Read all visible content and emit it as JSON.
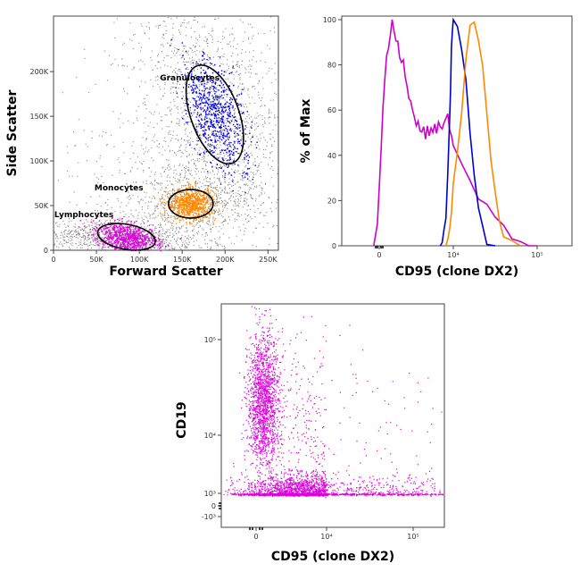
{
  "chart_data": [
    {
      "type": "scatter",
      "xlabel": "Forward Scatter",
      "ylabel": "Side Scatter",
      "xlim": [
        0,
        262144
      ],
      "ylim": [
        0,
        262144
      ],
      "x_ticks": [
        "0",
        "50K",
        "100K",
        "150K",
        "200K",
        "250K"
      ],
      "y_ticks": [
        "0",
        "50K",
        "100K",
        "150K",
        "200K"
      ],
      "x_tick_values": [
        0,
        50000,
        100000,
        150000,
        200000,
        250000
      ],
      "y_tick_values": [
        0,
        50000,
        100000,
        150000,
        200000
      ],
      "background_color": "#888888",
      "gates": [
        {
          "name": "Granulocytes",
          "color": "#0000ee",
          "center": [
            188000,
            152000
          ],
          "radius": [
            28000,
            58000
          ],
          "angle_deg": 20
        },
        {
          "name": "Monocytes",
          "color": "#ff8800",
          "center": [
            160000,
            52000
          ],
          "radius": [
            26000,
            16000
          ],
          "angle_deg": 0
        },
        {
          "name": "Lymphocytes",
          "color": "#dd00dd",
          "center": [
            85000,
            15000
          ],
          "radius": [
            34000,
            14000
          ],
          "angle_deg": -10
        }
      ]
    },
    {
      "type": "line",
      "xlabel": "CD95 (clone DX2)",
      "ylabel": "% of Max",
      "x_ticks": [
        "0",
        "10⁴",
        "10⁵"
      ],
      "x_tick_values": [
        0,
        4,
        5
      ],
      "y_ticks": [
        "0",
        "20",
        "40",
        "60",
        "80",
        "100"
      ],
      "y_tick_values": [
        0,
        20,
        40,
        60,
        80,
        100
      ],
      "ylim": [
        0,
        100
      ],
      "series": [
        {
          "color": "#cc00cc",
          "x": [
            -0.3,
            -0.2,
            -0.1,
            0,
            0.1,
            0.2,
            0.3,
            0.4,
            0.5,
            0.6,
            0.7,
            0.8,
            0.9,
            1,
            1.1,
            1.2,
            1.3,
            1.4,
            1.5,
            1.6,
            1.7,
            1.8,
            1.9,
            2,
            2.1,
            2.2,
            2.3,
            2.4,
            2.5,
            2.6,
            2.7,
            2.8,
            2.9,
            3,
            3.1,
            3.2,
            3.3,
            3.4,
            3.5,
            3.6,
            3.7,
            3.8,
            3.9,
            4,
            4.1,
            4.2,
            4.3,
            4.4,
            4.5,
            4.6,
            4.7,
            4.8,
            4.9,
            5
          ],
          "y": [
            0,
            3,
            10,
            25,
            45,
            62,
            74,
            82,
            88,
            92,
            99,
            94,
            92,
            90,
            86,
            84,
            80,
            75,
            72,
            68,
            64,
            60,
            57,
            55,
            53,
            52,
            51,
            50,
            50,
            50,
            51,
            52,
            52,
            52,
            51,
            52,
            53,
            54,
            55,
            56,
            56,
            54,
            48,
            42,
            35,
            28,
            22,
            16,
            12,
            8,
            5,
            3,
            1,
            0
          ]
        },
        {
          "color": "#0000cc",
          "x": [
            3.3,
            3.4,
            3.5,
            3.6,
            3.7,
            3.8,
            3.85,
            3.9,
            3.95,
            4,
            4.05,
            4.1,
            4.15,
            4.2,
            4.25,
            4.3,
            4.35,
            4.4,
            4.5
          ],
          "y": [
            0,
            2,
            6,
            14,
            30,
            55,
            70,
            85,
            95,
            100,
            96,
            88,
            72,
            50,
            30,
            14,
            6,
            2,
            0
          ]
        },
        {
          "color": "#ff8800",
          "x": [
            3.6,
            3.7,
            3.8,
            3.9,
            4,
            4.05,
            4.1,
            4.15,
            4.2,
            4.25,
            4.3,
            4.35,
            4.4,
            4.45,
            4.5,
            4.55,
            4.6,
            4.7,
            4.8
          ],
          "y": [
            0,
            2,
            5,
            12,
            28,
            42,
            60,
            80,
            95,
            100,
            92,
            78,
            58,
            38,
            22,
            12,
            5,
            2,
            0
          ]
        }
      ]
    },
    {
      "type": "scatter",
      "xlabel": "CD95 (clone DX2)",
      "ylabel": "CD19",
      "x_ticks": [
        "0",
        "10⁴",
        "10⁵"
      ],
      "x_tick_values": [
        0,
        4,
        5
      ],
      "y_ticks": [
        "10⁵",
        "10⁴",
        "10³",
        "0",
        "-10³"
      ],
      "y_tick_values": [
        5,
        4,
        3,
        0,
        -1
      ],
      "point_color": "#dd00dd",
      "populations": [
        {
          "center": [
            0.4,
            4.35
          ],
          "spread": [
            0.45,
            0.35
          ],
          "count": 1600
        },
        {
          "center": [
            2.7,
            2.95
          ],
          "spread": [
            1.7,
            0.18
          ],
          "count": 3200
        },
        {
          "center": [
            3.0,
            4.0
          ],
          "spread": [
            1.5,
            0.6
          ],
          "count": 350
        }
      ]
    }
  ]
}
